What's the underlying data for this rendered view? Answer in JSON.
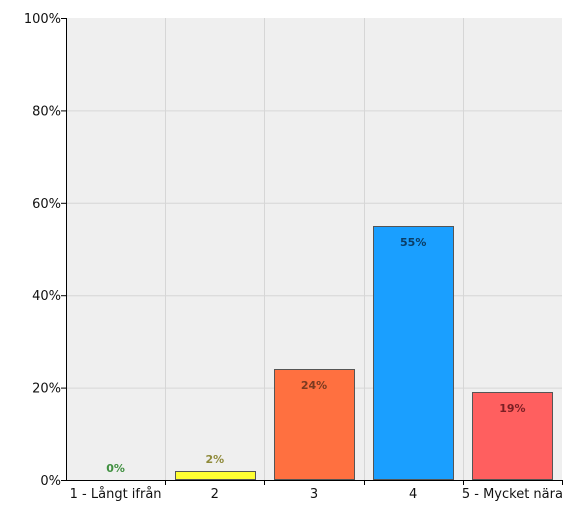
{
  "chart_data": {
    "type": "bar",
    "categories": [
      "1 - Långt ifrån",
      "2",
      "3",
      "4",
      "5 - Mycket nära"
    ],
    "values": [
      0,
      2,
      24,
      55,
      19
    ],
    "value_labels": [
      "0%",
      "2%",
      "24%",
      "55%",
      "19%"
    ],
    "y_ticks": [
      "0%",
      "20%",
      "40%",
      "60%",
      "80%",
      "100%"
    ],
    "ylim": [
      0,
      100
    ],
    "grid": true,
    "title": "",
    "xlabel": "",
    "ylabel": "",
    "bar_colors": [
      "#33cc33",
      "#ffff33",
      "#ff7040",
      "#1a9fff",
      "#ff5f5f"
    ],
    "label_colors": [
      "#3f8f3f",
      "#8f8a3a",
      "#7a3a20",
      "#0b3d66",
      "#7a1f24"
    ],
    "plot_background": "#efefef",
    "gridline_color": "#d6d6d6"
  }
}
